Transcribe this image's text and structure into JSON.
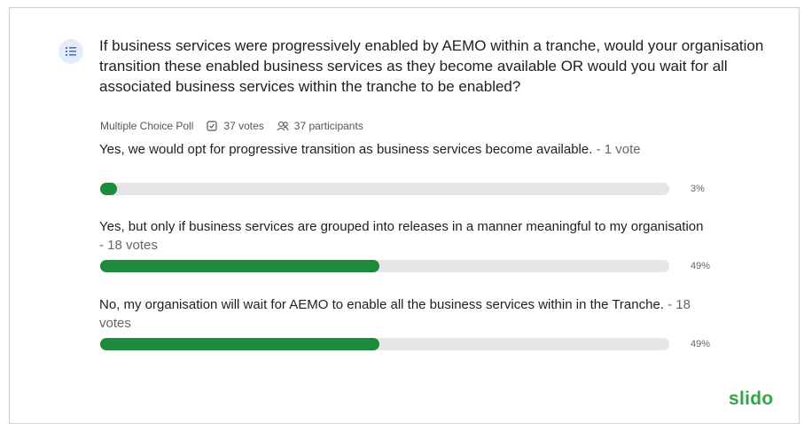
{
  "poll": {
    "question": "If business services were progressively enabled by AEMO within a tranche, would your organisation transition these enabled business services as they become available OR would you wait for all associated business services within the tranche to be enabled?",
    "type_label": "Multiple Choice Poll",
    "votes_label": "37 votes",
    "participants_label": "37 participants",
    "options": [
      {
        "text": "Yes, we would opt for progressive transition as business services become available.",
        "votes_label": "- 1 vote",
        "percent": 3,
        "percent_label": "3%"
      },
      {
        "text": "Yes, but only if business services are grouped into releases in a manner meaningful to my organisation",
        "votes_label": "- 18 votes",
        "percent": 49,
        "percent_label": "49%"
      },
      {
        "text": "No, my organisation will wait for AEMO to enable all the business services within in the Tranche.",
        "votes_label": "- 18 votes",
        "percent": 49,
        "percent_label": "49%"
      }
    ],
    "brand": "slido"
  }
}
